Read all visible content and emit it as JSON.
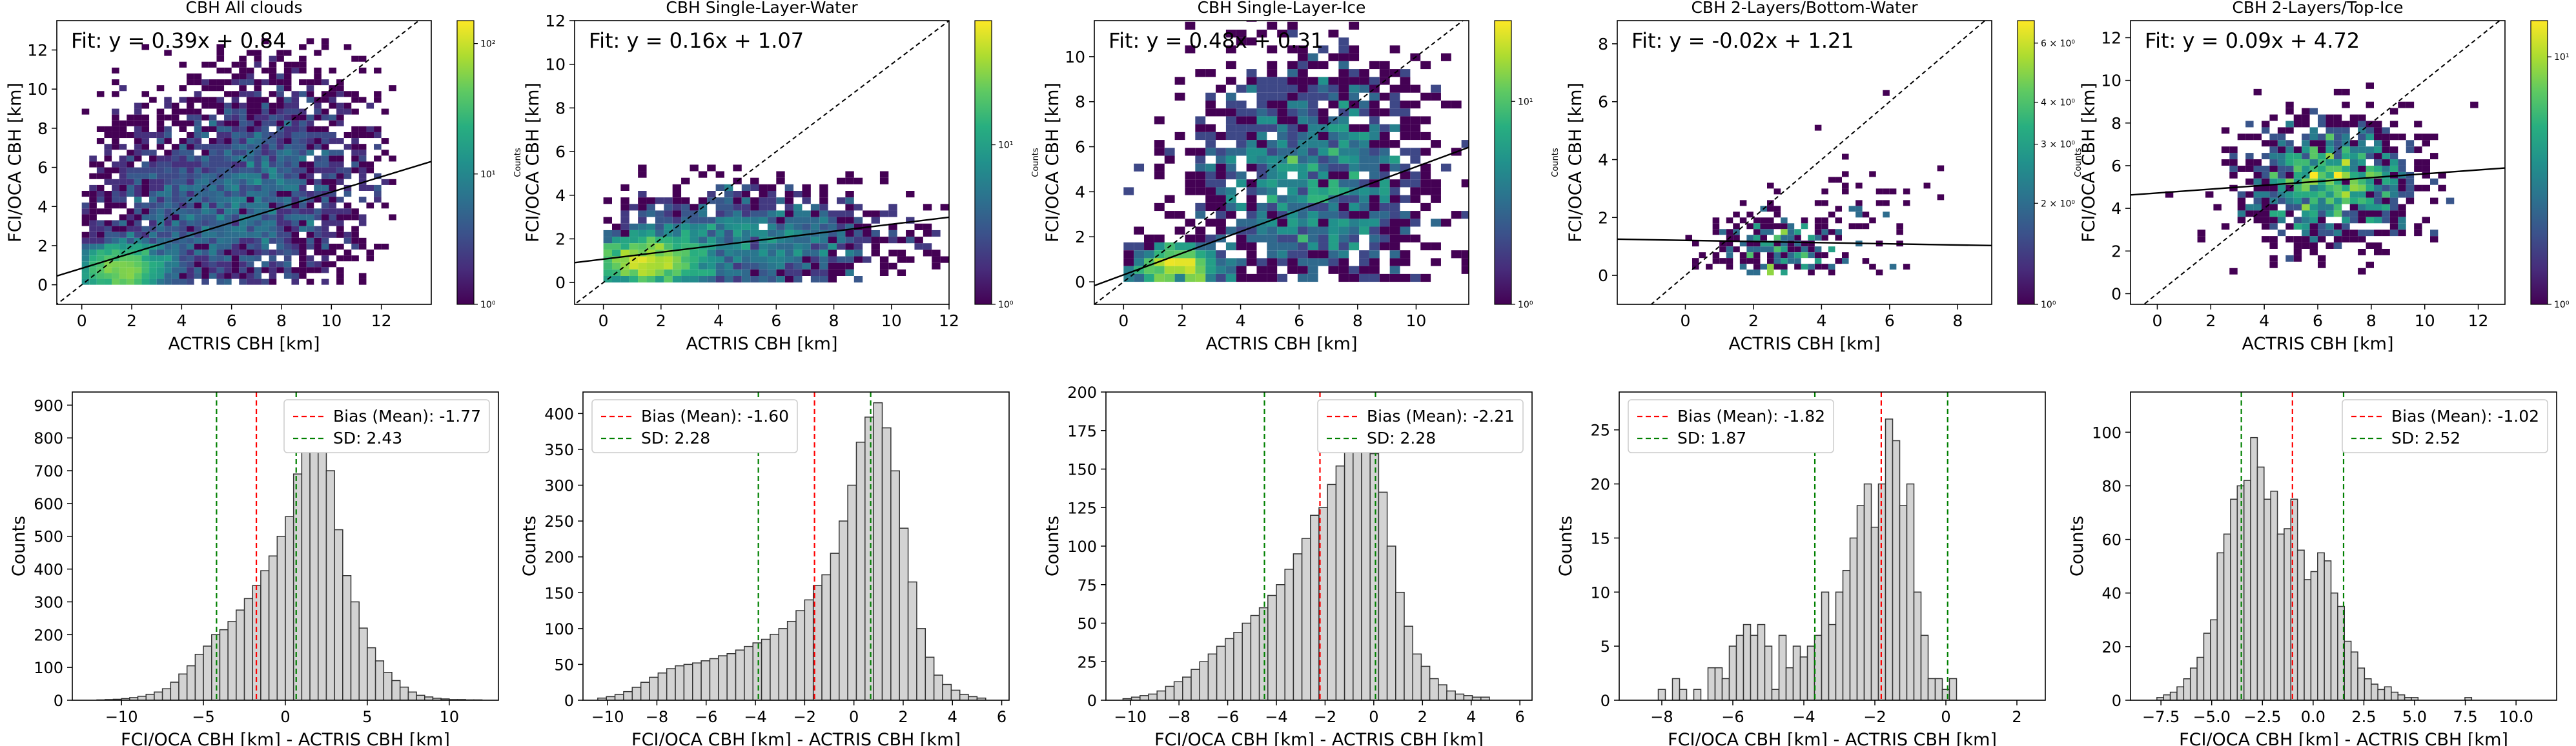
{
  "chart_data": [
    {
      "type": "heatmap",
      "title": "CBH All clouds",
      "xlabel": "ACTRIS CBH [km]",
      "ylabel": "FCI/OCA CBH [km]",
      "xlim": [
        -1,
        14
      ],
      "ylim": [
        -1,
        13.5
      ],
      "xticks": [
        0,
        2,
        4,
        6,
        8,
        10,
        12
      ],
      "yticks": [
        0,
        2,
        4,
        6,
        8,
        10,
        12
      ],
      "fit": {
        "slope": 0.39,
        "intercept": 0.84,
        "label": "Fit: y = 0.39x + 0.84"
      },
      "one_to_one_line": true,
      "colorbar": {
        "label": "Counts",
        "scale": "log",
        "min": 1,
        "max": 150,
        "ticks": [
          {
            "v": 1,
            "label": "10⁰"
          },
          {
            "v": 10,
            "label": "10¹"
          },
          {
            "v": 100,
            "label": "10²"
          }
        ]
      },
      "density": {
        "n": 6000,
        "seed": 11,
        "bin": 0.3,
        "centers": [
          [
            1.6,
            0.8,
            0.9,
            0.7,
            0.45
          ],
          [
            5,
            4,
            2.5,
            2.5,
            0.35
          ],
          [
            8,
            6,
            2,
            3,
            0.2
          ]
        ]
      }
    },
    {
      "type": "heatmap",
      "title": "CBH Single-Layer-Water",
      "xlabel": "ACTRIS CBH [km]",
      "ylabel": "FCI/OCA CBH [km]",
      "xlim": [
        -1,
        12
      ],
      "ylim": [
        -1,
        12
      ],
      "xticks": [
        0,
        2,
        4,
        6,
        8,
        10,
        12
      ],
      "yticks": [
        0,
        2,
        4,
        6,
        8,
        10,
        12
      ],
      "fit": {
        "slope": 0.16,
        "intercept": 1.07,
        "label": "Fit: y = 0.16x + 1.07"
      },
      "one_to_one_line": true,
      "colorbar": {
        "label": "Counts",
        "scale": "log",
        "min": 1,
        "max": 60,
        "ticks": [
          {
            "v": 1,
            "label": "10⁰"
          },
          {
            "v": 10,
            "label": "10¹"
          }
        ]
      },
      "density": {
        "n": 3200,
        "seed": 22,
        "bin": 0.3,
        "centers": [
          [
            1.5,
            1.0,
            1.0,
            0.6,
            0.55
          ],
          [
            5,
            2,
            2.5,
            1.2,
            0.45
          ]
        ]
      }
    },
    {
      "type": "heatmap",
      "title": "CBH Single-Layer-Ice",
      "xlabel": "ACTRIS CBH [km]",
      "ylabel": "FCI/OCA CBH [km]",
      "xlim": [
        -1,
        11.8
      ],
      "ylim": [
        -1,
        11.6
      ],
      "xticks": [
        0,
        2,
        4,
        6,
        8,
        10
      ],
      "yticks": [
        0,
        2,
        4,
        6,
        8,
        10
      ],
      "fit": {
        "slope": 0.48,
        "intercept": 0.31,
        "label": "Fit: y = 0.48x + 0.31"
      },
      "one_to_one_line": true,
      "colorbar": {
        "label": "Counts",
        "scale": "log",
        "min": 1,
        "max": 25,
        "ticks": [
          {
            "v": 1,
            "label": "10⁰"
          },
          {
            "v": 10,
            "label": "10¹"
          }
        ]
      },
      "density": {
        "n": 2000,
        "seed": 33,
        "bin": 0.35,
        "centers": [
          [
            1.8,
            0.6,
            0.8,
            0.6,
            0.25
          ],
          [
            6.5,
            4.5,
            2.2,
            2.8,
            0.75
          ]
        ]
      }
    },
    {
      "type": "heatmap",
      "title": "CBH 2-Layers/Bottom-Water",
      "xlabel": "ACTRIS CBH [km]",
      "ylabel": "FCI/OCA CBH [km]",
      "xlim": [
        -2,
        9
      ],
      "ylim": [
        -1,
        8.8
      ],
      "xticks": [
        0,
        2,
        4,
        6,
        8
      ],
      "yticks": [
        0,
        2,
        4,
        6,
        8
      ],
      "fit": {
        "slope": -0.02,
        "intercept": 1.21,
        "label": "Fit: y = -0.02x + 1.21"
      },
      "one_to_one_line": true,
      "colorbar": {
        "label": "Counts",
        "scale": "log",
        "min": 1,
        "max": 7,
        "ticks": [
          {
            "v": 1,
            "label": "10⁰"
          },
          {
            "v": 2,
            "label": "2 × 10⁰"
          },
          {
            "v": 3,
            "label": "3 × 10⁰"
          },
          {
            "v": 4,
            "label": "4 × 10⁰"
          },
          {
            "v": 6,
            "label": "6 × 10⁰"
          }
        ]
      },
      "density": {
        "n": 300,
        "seed": 44,
        "bin": 0.2,
        "centers": [
          [
            2.6,
            1.0,
            1.0,
            0.7,
            0.8
          ],
          [
            5,
            2.2,
            1.2,
            1.2,
            0.2
          ]
        ]
      }
    },
    {
      "type": "heatmap",
      "title": "CBH 2-Layers/Top-Ice",
      "xlabel": "ACTRIS CBH [km]",
      "ylabel": "FCI/OCA CBH [km]",
      "xlim": [
        -1,
        13
      ],
      "ylim": [
        -0.5,
        12.8
      ],
      "xticks": [
        0,
        2,
        4,
        6,
        8,
        10,
        12
      ],
      "yticks": [
        0,
        2,
        4,
        6,
        8,
        10,
        12
      ],
      "fit": {
        "slope": 0.09,
        "intercept": 4.72,
        "label": "Fit: y = 0.09x + 4.72"
      },
      "one_to_one_line": true,
      "colorbar": {
        "label": "Counts",
        "scale": "log",
        "min": 1,
        "max": 14,
        "ticks": [
          {
            "v": 1,
            "label": "10⁰"
          },
          {
            "v": 10,
            "label": "10¹"
          }
        ]
      },
      "density": {
        "n": 1100,
        "seed": 55,
        "bin": 0.3,
        "centers": [
          [
            6.5,
            5.3,
            1.6,
            1.4,
            1.0
          ]
        ]
      }
    },
    {
      "type": "bar",
      "xlabel": "FCI/OCA CBH [km] - ACTRIS CBH [km]",
      "ylabel": "Counts",
      "xlim": [
        -13,
        13
      ],
      "ylim": [
        0,
        940
      ],
      "xticks": [
        -10,
        -5,
        0,
        5,
        10
      ],
      "yticks": [
        0,
        100,
        200,
        300,
        400,
        500,
        600,
        700,
        800,
        900
      ],
      "bins": {
        "start": -11.5,
        "width": 0.5
      },
      "values": [
        1,
        2,
        3,
        5,
        8,
        12,
        18,
        25,
        35,
        55,
        80,
        105,
        140,
        165,
        200,
        215,
        240,
        275,
        310,
        350,
        395,
        440,
        500,
        560,
        690,
        850,
        910,
        880,
        700,
        520,
        380,
        300,
        220,
        160,
        120,
        85,
        60,
        40,
        25,
        15,
        10,
        6,
        4,
        2,
        2,
        1,
        1
      ],
      "bias": {
        "value": -1.77,
        "label": "Bias (Mean): -1.77"
      },
      "sd": {
        "value": 2.43,
        "label": "SD: 2.43"
      },
      "legend": "top-right"
    },
    {
      "type": "bar",
      "xlabel": "FCI/OCA CBH [km] - ACTRIS CBH [km]",
      "ylabel": "Counts",
      "xlim": [
        -11,
        6.3
      ],
      "ylim": [
        0,
        430
      ],
      "xticks": [
        -10,
        -8,
        -6,
        -4,
        -2,
        0,
        2,
        4,
        6
      ],
      "yticks": [
        0,
        50,
        100,
        150,
        200,
        250,
        300,
        350,
        400
      ],
      "bins": {
        "start": -10.4,
        "width": 0.35
      },
      "values": [
        3,
        5,
        8,
        12,
        18,
        25,
        32,
        38,
        44,
        48,
        50,
        52,
        55,
        58,
        62,
        65,
        70,
        75,
        80,
        85,
        92,
        100,
        110,
        125,
        140,
        160,
        175,
        205,
        250,
        300,
        360,
        395,
        415,
        380,
        320,
        240,
        165,
        100,
        60,
        35,
        22,
        14,
        8,
        5,
        3
      ],
      "bias": {
        "value": -1.6,
        "label": "Bias (Mean): -1.60"
      },
      "sd": {
        "value": 2.28,
        "label": "SD: 2.28"
      },
      "legend": "top-left"
    },
    {
      "type": "bar",
      "xlabel": "FCI/OCA CBH [km] - ACTRIS CBH [km]",
      "ylabel": "Counts",
      "xlim": [
        -11,
        6.5
      ],
      "ylim": [
        0,
        200
      ],
      "xticks": [
        -10,
        -8,
        -6,
        -4,
        -2,
        0,
        2,
        4,
        6
      ],
      "yticks": [
        0,
        25,
        50,
        75,
        100,
        125,
        150,
        175,
        200
      ],
      "bins": {
        "start": -10.3,
        "width": 0.35
      },
      "values": [
        1,
        2,
        3,
        4,
        6,
        9,
        12,
        15,
        20,
        25,
        30,
        35,
        40,
        44,
        50,
        55,
        60,
        68,
        75,
        85,
        95,
        105,
        120,
        125,
        140,
        152,
        165,
        172,
        180,
        160,
        135,
        100,
        70,
        48,
        30,
        22,
        14,
        10,
        6,
        4,
        3,
        2,
        2
      ],
      "bias": {
        "value": -2.21,
        "label": "Bias (Mean): -2.21"
      },
      "sd": {
        "value": 2.28,
        "label": "SD: 2.28"
      },
      "legend": "top-right"
    },
    {
      "type": "bar",
      "xlabel": "FCI/OCA CBH [km] - ACTRIS CBH [km]",
      "ylabel": "Counts",
      "xlim": [
        -9.2,
        2.8
      ],
      "ylim": [
        0,
        28.5
      ],
      "xticks": [
        -8,
        -6,
        -4,
        -2,
        0,
        2
      ],
      "yticks": [
        0,
        5,
        10,
        15,
        20,
        25
      ],
      "bins": {
        "start": -8.1,
        "width": 0.2
      },
      "values": [
        1,
        0,
        2,
        1,
        0,
        1,
        0,
        3,
        3,
        2,
        5,
        6,
        7,
        6,
        7,
        5,
        1,
        6,
        3,
        5,
        4,
        5,
        6,
        10,
        7,
        10,
        12,
        15,
        18,
        20,
        16,
        20,
        26,
        24,
        18,
        20,
        10,
        6,
        2,
        2,
        1,
        2
      ],
      "bias": {
        "value": -1.82,
        "label": "Bias (Mean): -1.82"
      },
      "sd": {
        "value": 1.87,
        "label": "SD: 1.87"
      },
      "legend": "top-left"
    },
    {
      "type": "bar",
      "xlabel": "FCI/OCA CBH [km] - ACTRIS CBH [km]",
      "ylabel": "Counts",
      "xlim": [
        -9,
        12
      ],
      "ylim": [
        0,
        115
      ],
      "xticks": [
        -7.5,
        -5.0,
        -2.5,
        0.0,
        2.5,
        5.0,
        7.5,
        10.0
      ],
      "xtick_labels": [
        "−7.5",
        "−5.0",
        "−2.5",
        "0.0",
        "2.5",
        "5.0",
        "7.5",
        "10.0"
      ],
      "yticks": [
        0,
        20,
        40,
        60,
        80,
        100
      ],
      "bins": {
        "start": -7.7,
        "width": 0.33
      },
      "values": [
        1,
        2,
        3,
        5,
        8,
        12,
        16,
        25,
        30,
        55,
        62,
        75,
        80,
        82,
        98,
        87,
        75,
        78,
        62,
        64,
        75,
        56,
        45,
        48,
        55,
        52,
        40,
        35,
        22,
        18,
        12,
        8,
        6,
        4,
        5,
        3,
        2,
        1,
        1,
        0,
        0,
        0,
        0,
        0,
        0,
        0,
        1
      ],
      "bias": {
        "value": -1.02,
        "label": "Bias (Mean): -1.02"
      },
      "sd": {
        "value": 2.52,
        "label": "SD: 2.52"
      },
      "legend": "top-right"
    }
  ]
}
